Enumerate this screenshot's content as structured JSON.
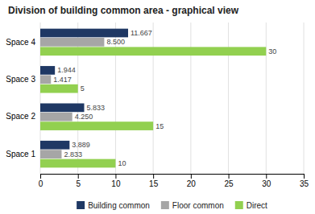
{
  "chart_data": {
    "type": "bar",
    "orientation": "horizontal",
    "title": "Division of building common area - graphical view",
    "categories": [
      "Space 1",
      "Space 2",
      "Space 3",
      "Space 4"
    ],
    "series": [
      {
        "name": "Building common",
        "color": "#1F3864",
        "values": [
          3.889,
          5.833,
          1.944,
          11.667
        ]
      },
      {
        "name": "Floor common",
        "color": "#A6A6A6",
        "values": [
          2.833,
          4.25,
          1.417,
          8.5
        ],
        "value_labels": [
          "2.833",
          "4.250",
          "1.417",
          "8.500"
        ]
      },
      {
        "name": "Direct",
        "color": "#92D050",
        "values": [
          10,
          15,
          5,
          30
        ]
      }
    ],
    "xlim": [
      0,
      35
    ],
    "xticks": [
      0,
      5,
      10,
      15,
      20,
      25,
      30,
      35
    ],
    "grid": true,
    "data_labels": true,
    "legend": "bottom"
  }
}
